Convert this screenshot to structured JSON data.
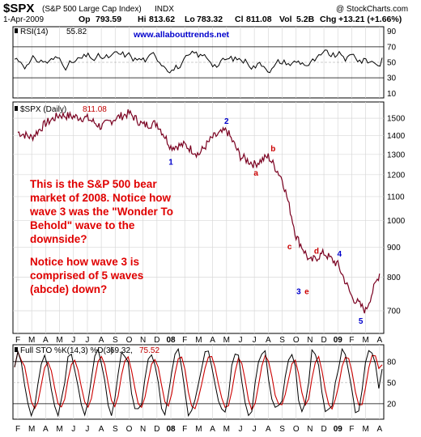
{
  "header": {
    "symbol": "$SPX",
    "name": "(S&P 500 Large Cap Index)",
    "exchange": "INDX",
    "watermark": "@ StockCharts.com",
    "date": "1-Apr-2009",
    "op_label": "Op",
    "op": "793.59",
    "hi_label": "Hi",
    "hi": "813.62",
    "lo_label": "Lo",
    "lo": "783.32",
    "cl_label": "Cl",
    "cl": "811.08",
    "vol_label": "Vol",
    "vol": "5.2B",
    "chg_label": "Chg",
    "chg": "+13.21 (+1.66%)"
  },
  "rsi_panel": {
    "label": "RSI(14)",
    "value": "55.82",
    "url": "www.allabouttrends.net"
  },
  "price_panel": {
    "label": "$SPX (Daily)",
    "value": "811.08"
  },
  "sto_panel": {
    "label": "Full STO %K(14,3) %D(3)",
    "k_value": "69.32,",
    "d_value": "75.52"
  },
  "annotation": {
    "lines": [
      "This is the S&P 500 bear",
      "market of 2008. Notice how",
      "wave 3 was the \"Wonder To",
      "Behold\" wave to the",
      "downside?",
      "",
      "Notice how wave 3 is",
      "comprised of 5 waves",
      "(abcde) down?"
    ]
  },
  "x_axis_months": [
    "F",
    "M",
    "A",
    "M",
    "J",
    "J",
    "A",
    "S",
    "O",
    "N",
    "D",
    "08",
    "F",
    "M",
    "A",
    "M",
    "J",
    "J",
    "A",
    "S",
    "O",
    "N",
    "D",
    "09",
    "F",
    "M",
    "A"
  ],
  "chart_data": [
    {
      "type": "line",
      "title": "RSI(14) 55.82",
      "ylim": [
        10,
        90
      ],
      "yticks": [
        90,
        70,
        50,
        30,
        10
      ],
      "reference_lines": [
        70,
        30
      ],
      "last_value": 55.82
    },
    {
      "type": "line",
      "title": "$SPX (Daily) 811.08",
      "ylim": [
        640,
        1600
      ],
      "ylog": true,
      "yticks": [
        1500,
        1400,
        1300,
        1200,
        1100,
        1000,
        900,
        800,
        700
      ],
      "grid": true,
      "series": [
        {
          "name": "$SPX",
          "x": [
            "2007-02",
            "2007-03",
            "2007-04",
            "2007-05",
            "2007-06",
            "2007-07",
            "2007-08",
            "2007-09",
            "2007-10",
            "2007-11",
            "2007-12",
            "2008-01",
            "2008-02",
            "2008-03",
            "2008-04",
            "2008-05",
            "2008-06",
            "2008-07",
            "2008-08",
            "2008-09",
            "2008-10",
            "2008-11",
            "2008-12",
            "2009-01",
            "2009-02",
            "2009-03",
            "2009-04"
          ],
          "values": [
            1420,
            1390,
            1470,
            1520,
            1510,
            1500,
            1450,
            1500,
            1530,
            1460,
            1470,
            1340,
            1350,
            1300,
            1390,
            1430,
            1290,
            1250,
            1290,
            1180,
            940,
            850,
            880,
            840,
            740,
            700,
            811
          ]
        }
      ],
      "wave_labels": [
        {
          "text": "1",
          "date": "2008-01",
          "kind": "wave"
        },
        {
          "text": "2",
          "date": "2008-05",
          "kind": "wave"
        },
        {
          "text": "a",
          "date": "2008-07",
          "kind": "sub"
        },
        {
          "text": "b",
          "date": "2008-08",
          "kind": "sub"
        },
        {
          "text": "c",
          "date": "2008-10",
          "kind": "sub"
        },
        {
          "text": "d",
          "date": "2008-11",
          "kind": "sub"
        },
        {
          "text": "3",
          "date": "2008-11",
          "kind": "wave"
        },
        {
          "text": "e",
          "date": "2008-11",
          "kind": "sub"
        },
        {
          "text": "4",
          "date": "2009-01",
          "kind": "wave"
        },
        {
          "text": "5",
          "date": "2009-03",
          "kind": "wave"
        }
      ]
    },
    {
      "type": "line",
      "title": "Full STO %K(14,3) %D(3) 69.32, 75.52",
      "ylim": [
        0,
        100
      ],
      "yticks": [
        80,
        50,
        20
      ],
      "reference_lines": [
        80,
        20
      ],
      "series": [
        {
          "name": "%K",
          "last_value": 69.32
        },
        {
          "name": "%D",
          "last_value": 75.52
        }
      ]
    }
  ]
}
